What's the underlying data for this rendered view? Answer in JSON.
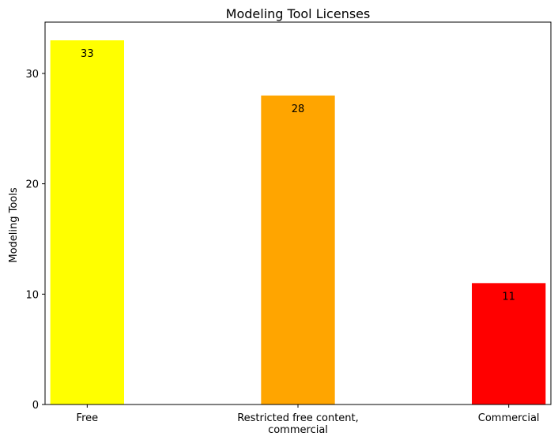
{
  "chart_data": {
    "type": "bar",
    "title": "Modeling Tool Licenses",
    "xlabel": "",
    "ylabel": "Modeling Tools",
    "categories": [
      [
        "Free"
      ],
      [
        "Restricted free content,",
        "commercial"
      ],
      [
        "Commercial"
      ]
    ],
    "values": [
      33,
      28,
      11
    ],
    "colors": [
      "#ffff00",
      "#ffa500",
      "#ff0000"
    ],
    "data_labels": [
      "33",
      "28",
      "11"
    ],
    "ylim": [
      0,
      34.65
    ],
    "yticks": [
      0,
      10,
      20,
      30
    ],
    "grid": false,
    "legend": "none"
  }
}
